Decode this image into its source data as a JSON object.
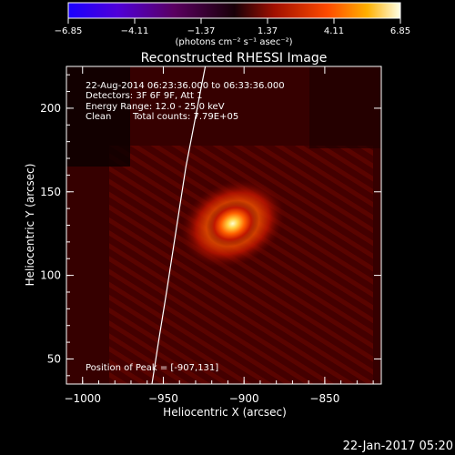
{
  "colorbar": {
    "ticks": [
      "-6.85",
      "-4.11",
      "-1.37",
      "1.37",
      "4.11",
      "6.85"
    ],
    "unit_label": "(photons cm⁻² s⁻¹ asec⁻²)",
    "range": [
      -6.85,
      6.85
    ]
  },
  "chart_data": {
    "type": "heatmap",
    "title": "Reconstructed RHESSI Image",
    "xlabel": "Heliocentric X (arcsec)",
    "ylabel": "Heliocentric Y (arcsec)",
    "xlim": [
      -1010,
      -815
    ],
    "ylim": [
      35,
      225
    ],
    "x_ticks": [
      {
        "value": -1000,
        "label": "−1000"
      },
      {
        "value": -950,
        "label": "−950"
      },
      {
        "value": -900,
        "label": "−900"
      },
      {
        "value": -850,
        "label": "−850"
      }
    ],
    "y_ticks": [
      {
        "value": 50,
        "label": "50"
      },
      {
        "value": 100,
        "label": "100"
      },
      {
        "value": 150,
        "label": "150"
      },
      {
        "value": 200,
        "label": "200"
      }
    ],
    "peak": {
      "x": -907,
      "y": 131
    },
    "annotations": {
      "line1": "22-Aug-2014 06:23:36.000 to 06:33:36.000",
      "line2": "Detectors: 3F 6F 9F, Att 1",
      "line3": "Energy Range: 12.0 - 25.0 keV",
      "line4_a": "Clean",
      "line4_b": "Total counts: 7.79E+05",
      "peak_text": "Position of Peak = [-907,131]"
    },
    "limb_points": [
      [
        -957,
        35
      ],
      [
        -953,
        60
      ],
      [
        -948,
        90
      ],
      [
        -944,
        115
      ],
      [
        -940,
        140
      ],
      [
        -936,
        165
      ],
      [
        -931,
        190
      ],
      [
        -926,
        215
      ],
      [
        -924,
        225
      ]
    ]
  },
  "footer": {
    "timestamp": "22-Jan-2017 05:20"
  }
}
